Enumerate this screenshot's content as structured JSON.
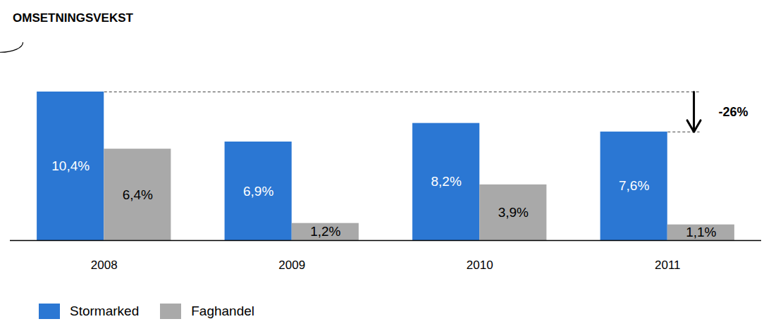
{
  "chart_data": {
    "type": "bar",
    "title": "OMSETNINGSVEKST",
    "categories": [
      "2008",
      "2009",
      "2010",
      "2011"
    ],
    "series": [
      {
        "name": "Stormarked",
        "color": "#2b77d3",
        "values": [
          10.4,
          6.9,
          8.2,
          7.6
        ],
        "value_labels": [
          "10,4%",
          "6,9%",
          "8,2%",
          "7,6%"
        ]
      },
      {
        "name": "Faghandel",
        "color": "#a9a9a9",
        "values": [
          6.4,
          1.2,
          3.9,
          1.1
        ],
        "value_labels": [
          "6,4%",
          "1,2%",
          "3,9%",
          "1,1%"
        ]
      }
    ],
    "ylim": [
      0,
      10.4
    ],
    "yticks": [],
    "data_labels": true,
    "tick_labels": "x",
    "legend": "bottom-left",
    "annotations": [
      {
        "text": "-26%",
        "series": "Stormarked",
        "from": "2008",
        "to": "2011"
      }
    ]
  }
}
